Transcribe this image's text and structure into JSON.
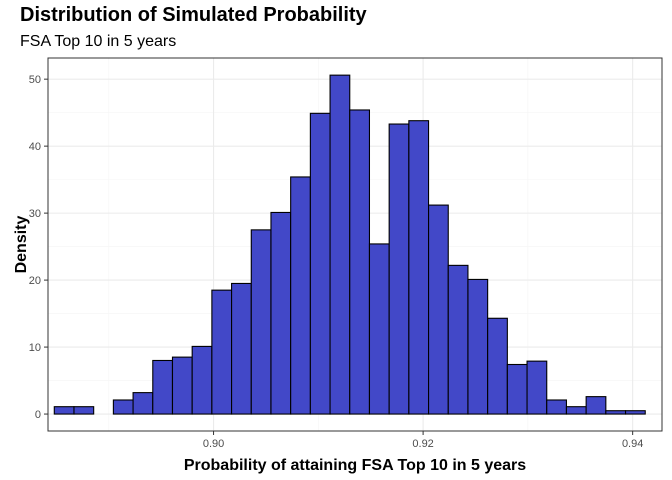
{
  "title": "Distribution of Simulated Probability",
  "subtitle": "FSA Top 10 in 5 years",
  "chart_data": {
    "type": "bar",
    "subtype": "histogram",
    "title": "Distribution of Simulated Probability",
    "subtitle": "FSA Top 10 in 5 years",
    "xlabel": "Probability of attaining FSA Top 10 in 5 years",
    "ylabel": "Density",
    "xlim": [
      0.8842,
      0.9428
    ],
    "ylim": [
      -2.53,
      53.16
    ],
    "bin_start": 0.8848,
    "bin_width": 0.00188,
    "values": [
      1.1,
      1.1,
      0,
      2.1,
      3.2,
      8.0,
      8.5,
      10.1,
      18.5,
      19.5,
      27.5,
      30.1,
      35.4,
      44.9,
      50.6,
      45.4,
      25.4,
      43.3,
      43.8,
      31.2,
      22.2,
      20.1,
      14.3,
      7.4,
      7.9,
      2.1,
      1.1,
      2.6,
      0.5,
      0.5
    ],
    "x_ticks": [
      {
        "value": 0.9,
        "label": "0.90"
      },
      {
        "value": 0.92,
        "label": "0.92"
      },
      {
        "value": 0.94,
        "label": "0.94"
      }
    ],
    "y_ticks": [
      {
        "value": 0,
        "label": "0"
      },
      {
        "value": 10,
        "label": "10"
      },
      {
        "value": 20,
        "label": "20"
      },
      {
        "value": 30,
        "label": "30"
      },
      {
        "value": 40,
        "label": "40"
      },
      {
        "value": 50,
        "label": "50"
      }
    ],
    "bar_fill": "#4248c8",
    "bar_stroke": "#000000",
    "panel_border": "#333333",
    "grid_major": "#ebebeb",
    "grid_minor": "#f5f5f5",
    "grid": true,
    "legend": "none"
  }
}
